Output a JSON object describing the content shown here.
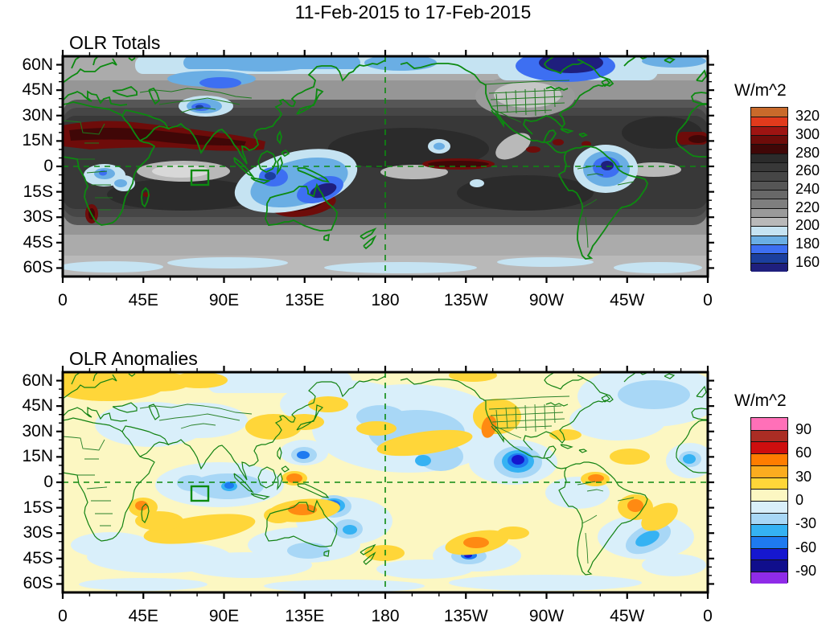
{
  "title": "11-Feb-2015 to 17-Feb-2015",
  "axes": {
    "x_tick_labels": [
      "0",
      "45E",
      "90E",
      "135E",
      "180",
      "135W",
      "90W",
      "45W",
      "0"
    ],
    "y_tick_labels": [
      "60N",
      "45N",
      "30N",
      "15N",
      "0",
      "15S",
      "30S",
      "45S",
      "60S"
    ]
  },
  "panels": [
    {
      "title": "OLR Totals",
      "units": "W/m^2",
      "colorbar": {
        "tick_labels_top_to_bottom": [
          "320",
          "300",
          "280",
          "260",
          "240",
          "220",
          "200",
          "180",
          "160"
        ],
        "colors_top_to_bottom": [
          "#C96A2B",
          "#E13A1C",
          "#9E1412",
          "#6E0C0A",
          "#400707",
          "#2B2B2B",
          "#383838",
          "#464646",
          "#565656",
          "#686868",
          "#7E7E7E",
          "#9A9A9A",
          "#B9B9B9",
          "#C5E3F2",
          "#6AAEE4",
          "#3D6FF2",
          "#1B3F9E",
          "#1F1F7D"
        ]
      }
    },
    {
      "title": "OLR Anomalies",
      "units": "W/m^2",
      "colorbar": {
        "tick_labels_top_to_bottom": [
          "90",
          "60",
          "30",
          "0",
          "-30",
          "-60",
          "-90"
        ],
        "colors_top_to_bottom": [
          "#FF70B8",
          "#AB2D24",
          "#CE0E0E",
          "#FF7D00",
          "#FBAC1F",
          "#FFD639",
          "#FCF7C2",
          "#D9EFFA",
          "#A8D7F6",
          "#35B2F3",
          "#1E7AF0",
          "#1517CF",
          "#100E8C",
          "#8F2BE8"
        ]
      }
    }
  ],
  "chart_data": [
    {
      "type": "heatmap",
      "subtype": "filled-contour-map",
      "projection": "equirectangular",
      "title": "OLR Totals",
      "units": "W/m^2",
      "x_tick_labels": [
        "0",
        "45E",
        "90E",
        "135E",
        "180",
        "135W",
        "90W",
        "45W",
        "0"
      ],
      "y_tick_labels": [
        "60N",
        "45N",
        "30N",
        "15N",
        "0",
        "15S",
        "30S",
        "45S",
        "60S"
      ],
      "contour_boundaries": [
        160,
        170,
        180,
        190,
        200,
        210,
        220,
        230,
        240,
        250,
        260,
        270,
        280,
        290,
        300,
        310,
        320
      ],
      "bin_colors_low_to_high": [
        "#1F1F7D",
        "#1B3F9E",
        "#3D6FF2",
        "#6AAEE4",
        "#C5E3F2",
        "#B9B9B9",
        "#9A9A9A",
        "#7E7E7E",
        "#686868",
        "#565656",
        "#464646",
        "#383838",
        "#2B2B2B",
        "#400707",
        "#6E0C0A",
        "#9E1412",
        "#E13A1C",
        "#C96A2B"
      ],
      "overlays": [
        "green coastlines and country borders",
        "US state borders",
        "dashed green meridian at 180",
        "dashed green equator line",
        "green outline box over equatorial Indian Ocean near 75-85E, 2-10S"
      ],
      "features": [
        "Very high OLR (>280, dark red band) across North Africa, Arabia and India near 10-25N",
        "High OLR (dark red) over interior Western Australia and small spots near South Africa, Caribbean and West Africa",
        "Dark red streak along the equator in the central Pacific",
        "Low OLR (<200, blues) over the Maritime Continent and Coral Sea with navy core (deep convection)",
        "Low OLR (blue with navy core) over central South America / Amazon",
        "Low OLR (blue) over the Tibetan Plateau",
        "Very low OLR (navy, <160) over northeastern Canada / Hudson Bay with blue band across Canada and Siberia",
        "Broad dark-gray band (230-280) across the tropics and subtropical oceans",
        "Light-gray ITCZ gaps near the equator in the Indian, eastern Pacific and Atlantic oceans",
        "Pale-blue band along 55-65S and at high northern latitudes"
      ]
    },
    {
      "type": "heatmap",
      "subtype": "filled-contour-map",
      "projection": "equirectangular",
      "title": "OLR Anomalies",
      "units": "W/m^2",
      "x_tick_labels": [
        "0",
        "45E",
        "90E",
        "135E",
        "180",
        "135W",
        "90W",
        "45W",
        "0"
      ],
      "y_tick_labels": [
        "60N",
        "45N",
        "30N",
        "15N",
        "0",
        "15S",
        "30S",
        "45S",
        "60S"
      ],
      "contour_boundaries": [
        -90,
        -75,
        -60,
        -45,
        -30,
        -15,
        0,
        15,
        30,
        45,
        60,
        75,
        90
      ],
      "bin_colors_low_to_high": [
        "#8F2BE8",
        "#100E8C",
        "#1517CF",
        "#1E7AF0",
        "#35B2F3",
        "#A8D7F6",
        "#D9EFFA",
        "#FCF7C2",
        "#FFD639",
        "#FBAC1F",
        "#FF7D00",
        "#CE0E0E",
        "#AB2D24",
        "#FF70B8"
      ],
      "overlays": [
        "green coastlines and country borders",
        "US state borders",
        "dashed green meridian at 180",
        "dashed green equator line",
        "green outline box over equatorial Indian Ocean near 75-85E, 2-10S"
      ],
      "features": [
        "Strong negative anomaly (blue/navy, -60 to -90) near the west coast of Mexico around 20N 105W",
        "Strong negative anomaly over the Coral Sea east of Australia",
        "Negative anomaly in the southeast Pacific near 30S 110W and along a South Atlantic diagonal band",
        "Negative anomalies over the equatorial Indian Ocean and Philippine Sea",
        "Positive anomalies (yellow/orange, +30 to +60) over northern Australia",
        "Positive anomalies over the central North Pacific and the western United States / California coast",
        "Positive anomalies over northern Europe and western Russia",
        "Positive anomaly near Madagascar / Mozambique Channel and the southern Indian Ocean arc",
        "Positive anomalies near Venezuela and eastern Brazil",
        "Weak anomalies (|anomaly| < 15, pale yellow / pale blue) over most remaining areas"
      ]
    }
  ]
}
